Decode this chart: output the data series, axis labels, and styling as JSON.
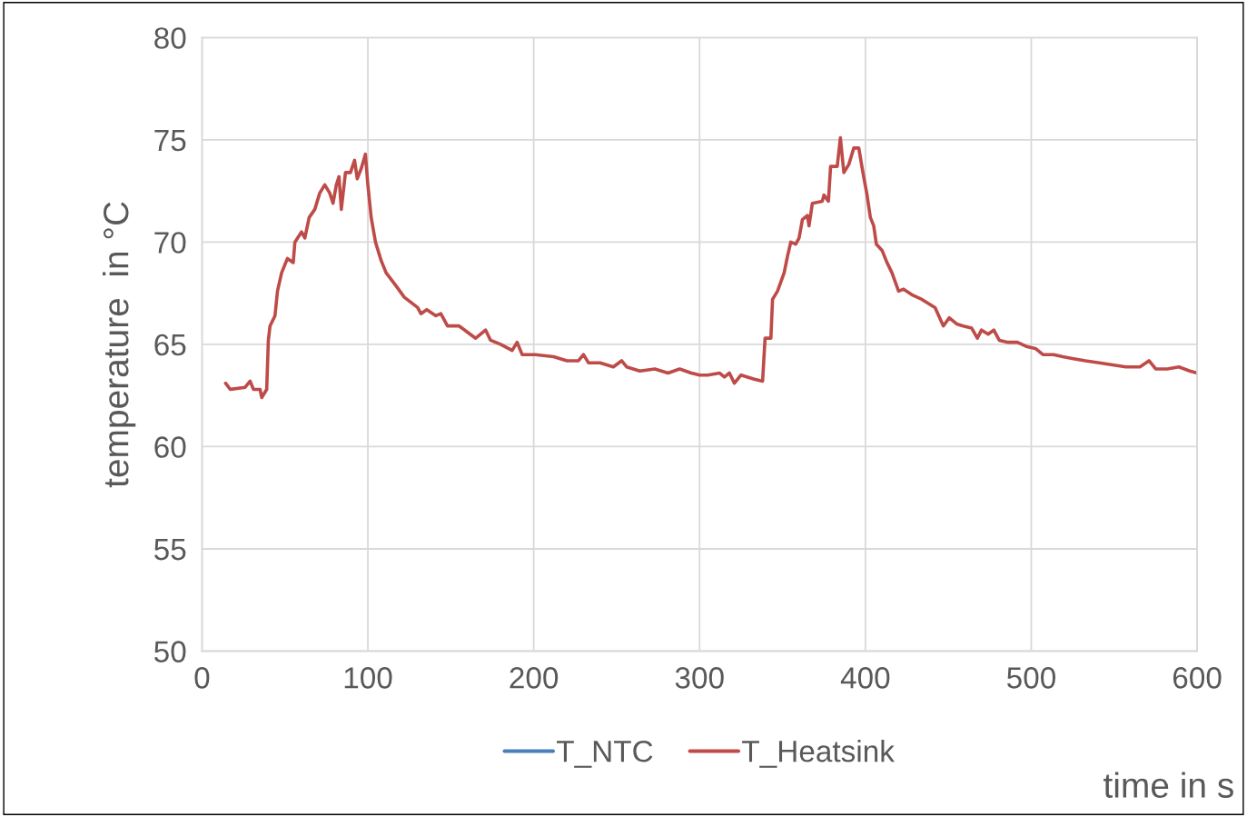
{
  "chart_data": {
    "type": "line",
    "xlabel": "time in s",
    "ylabel": "temperature  in °C",
    "x": [
      14.2,
      17,
      26,
      29,
      31,
      35,
      36,
      39,
      40,
      41,
      44,
      45.5,
      48,
      51.5,
      55,
      56,
      60,
      62,
      64.6,
      68,
      71,
      74,
      77,
      79,
      81,
      82.6,
      84,
      86.5,
      89.5,
      92,
      93.6,
      96,
      98.5,
      100,
      102,
      104.6,
      108,
      111,
      116.6,
      122,
      130,
      132,
      135.5,
      141,
      144,
      148,
      155,
      160,
      165,
      171,
      174,
      180,
      187,
      190,
      193,
      201,
      212,
      220,
      227,
      230,
      233,
      240,
      248,
      253,
      256,
      264,
      273,
      281,
      288,
      295,
      300,
      305,
      312,
      315,
      318,
      321,
      325,
      333,
      338,
      339.5,
      343,
      344,
      347,
      351,
      353,
      355,
      358,
      360,
      362,
      365,
      366,
      368,
      374,
      375,
      377.7,
      379,
      383,
      384.9,
      387,
      390,
      393,
      396,
      398.5,
      401,
      403,
      405,
      406.6,
      410,
      413,
      416,
      420,
      423,
      428.6,
      434,
      442,
      447,
      450.5,
      455,
      459,
      464,
      467.5,
      470,
      474,
      477.4,
      480.7,
      486,
      491.6,
      497,
      502.5,
      507,
      513.5,
      519,
      525.5,
      532.7,
      541,
      549,
      557,
      565.5,
      571,
      575,
      582,
      589,
      595.6,
      600
    ],
    "series": [
      {
        "name": "T_NTC",
        "color": "#4a7ebb",
        "values": [
          null,
          null,
          null,
          null,
          null,
          null,
          null,
          null,
          null,
          null,
          null,
          null,
          null,
          null,
          null,
          null,
          null,
          null,
          null,
          null,
          null,
          null,
          null,
          null,
          null,
          null,
          null,
          null,
          null,
          null,
          null,
          null,
          null,
          null,
          null,
          null,
          null,
          null,
          null,
          null,
          null,
          null,
          null,
          null,
          null,
          null,
          null,
          null,
          null,
          null,
          null,
          null,
          null,
          null,
          null,
          null,
          null,
          null,
          null,
          null,
          null,
          null,
          null,
          null,
          null,
          null,
          null,
          null,
          null,
          null,
          null,
          null,
          null,
          null,
          null,
          null,
          null,
          null,
          null,
          null,
          null,
          null,
          null,
          null,
          null,
          null,
          null,
          null,
          null,
          null,
          null,
          null,
          null,
          null,
          null,
          null,
          null,
          null,
          null,
          null,
          null,
          null,
          null,
          null,
          null,
          null,
          null,
          null,
          null,
          null,
          null,
          null,
          null,
          null,
          null,
          null,
          null,
          null,
          null,
          null,
          null,
          null,
          null,
          null,
          null,
          null,
          null,
          null,
          null,
          null,
          null,
          null,
          null,
          null,
          null,
          null,
          null,
          null,
          null,
          null,
          null,
          null,
          null,
          null
        ]
      },
      {
        "name": "T_Heatsink",
        "color": "#be4b48",
        "values": [
          63.1,
          62.8,
          62.9,
          63.2,
          62.8,
          62.8,
          62.4,
          62.8,
          65.2,
          65.9,
          66.4,
          67.6,
          68.5,
          69.2,
          69.0,
          70.0,
          70.5,
          70.2,
          71.2,
          71.6,
          72.4,
          72.8,
          72.4,
          71.9,
          72.8,
          73.2,
          71.6,
          73.4,
          73.4,
          74.0,
          73.1,
          73.6,
          74.3,
          72.8,
          71.2,
          70.0,
          69.1,
          68.5,
          67.9,
          67.3,
          66.8,
          66.5,
          66.7,
          66.4,
          66.5,
          65.9,
          65.9,
          65.6,
          65.3,
          65.7,
          65.2,
          65.0,
          64.7,
          65.1,
          64.5,
          64.5,
          64.4,
          64.2,
          64.2,
          64.5,
          64.1,
          64.1,
          63.9,
          64.2,
          63.9,
          63.7,
          63.8,
          63.6,
          63.8,
          63.6,
          63.5,
          63.5,
          63.6,
          63.4,
          63.6,
          63.1,
          63.5,
          63.3,
          63.2,
          65.3,
          65.3,
          67.2,
          67.6,
          68.5,
          69.3,
          70.0,
          69.9,
          70.2,
          71.1,
          71.3,
          70.8,
          71.9,
          72.0,
          72.3,
          72.0,
          73.7,
          73.7,
          75.1,
          73.4,
          73.8,
          74.6,
          74.6,
          73.4,
          72.3,
          71.2,
          70.8,
          69.9,
          69.6,
          69.0,
          68.5,
          67.6,
          67.7,
          67.4,
          67.2,
          66.8,
          65.9,
          66.3,
          66.0,
          65.9,
          65.8,
          65.3,
          65.7,
          65.5,
          65.7,
          65.2,
          65.1,
          65.1,
          64.9,
          64.8,
          64.5,
          64.5,
          64.4,
          64.3,
          64.2,
          64.1,
          64.0,
          63.9,
          63.9,
          64.2,
          63.8,
          63.8,
          63.9,
          63.7,
          63.6
        ]
      }
    ],
    "xlim": [
      0,
      600
    ],
    "xticks": [
      0,
      100,
      200,
      300,
      400,
      500,
      600
    ],
    "ylim": [
      50,
      80
    ],
    "yticks": [
      50,
      55,
      60,
      65,
      70,
      75,
      80
    ],
    "grid": true,
    "legend": "bottom",
    "line_style": "solid",
    "marker": "none"
  }
}
